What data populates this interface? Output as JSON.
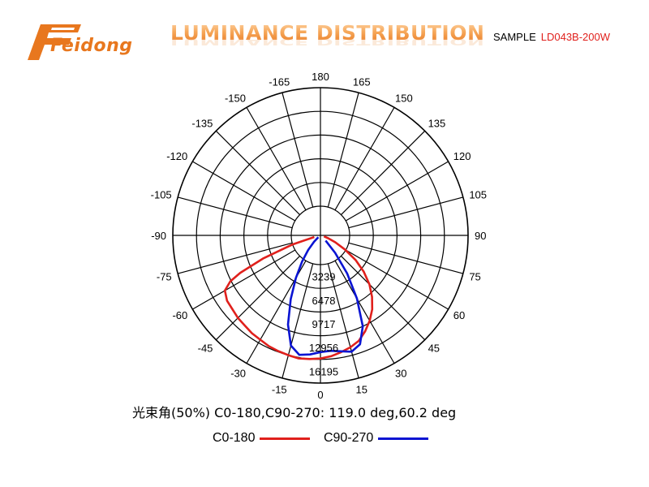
{
  "header": {
    "brand": "Feidong",
    "title": "LUMINANCE DISTRIBUTION",
    "sample_label": "SAMPLE",
    "sample_value": "LD043B-200W",
    "brand_color": "#e8771e",
    "sample_value_color": "#e0201c"
  },
  "chart_data": {
    "type": "polar",
    "title": "LUMINANCE DISTRIBUTION",
    "radial_max": 16195,
    "radial_ticks": [
      "3239",
      "6478",
      "9717",
      "12956",
      "16195"
    ],
    "angle_tick_labels": [
      "0",
      "15",
      "30",
      "45",
      "60",
      "75",
      "90",
      "105",
      "120",
      "135",
      "150",
      "165",
      "180",
      "-165",
      "-150",
      "-135",
      "-120",
      "-105",
      "-90",
      "-75",
      "-60",
      "-45",
      "-30",
      "-15"
    ],
    "series": [
      {
        "name": "C0-180",
        "color": "#e0201c",
        "angles": [
          -75,
          -72,
          -68,
          -65,
          -63,
          -60,
          -55,
          -50,
          -45,
          -40,
          -35,
          -30,
          -25,
          -20,
          -15,
          -10,
          -5,
          0,
          5,
          10,
          15,
          20,
          25,
          30,
          35,
          40,
          45,
          50,
          55,
          60,
          65,
          70,
          75
        ],
        "values": [
          700,
          3200,
          6800,
          9700,
          11100,
          12100,
          12500,
          12600,
          12800,
          12900,
          13100,
          13200,
          13400,
          13500,
          13600,
          13700,
          13600,
          13500,
          13300,
          13000,
          12700,
          12300,
          11600,
          10800,
          9900,
          8800,
          7600,
          6200,
          4700,
          3100,
          1800,
          900,
          400
        ]
      },
      {
        "name": "C90-270",
        "color": "#0a14d2",
        "angles": [
          -50,
          -45,
          -40,
          -35,
          -30,
          -25,
          -20,
          -15,
          -10,
          -5,
          0,
          5,
          10,
          15,
          20,
          25,
          30,
          35,
          40,
          45
        ],
        "values": [
          300,
          1000,
          2100,
          3500,
          5400,
          7700,
          10400,
          12500,
          13300,
          13100,
          12800,
          12700,
          12900,
          13200,
          12700,
          11000,
          8000,
          5100,
          2500,
          800
        ]
      }
    ]
  },
  "annotation": {
    "beam_angle_text": "光束角(50%) C0-180,C90-270: 119.0 deg,60.2 deg"
  },
  "legend": {
    "items": [
      {
        "label": "C0-180",
        "color": "#e0201c"
      },
      {
        "label": "C90-270",
        "color": "#0a14d2"
      }
    ]
  }
}
